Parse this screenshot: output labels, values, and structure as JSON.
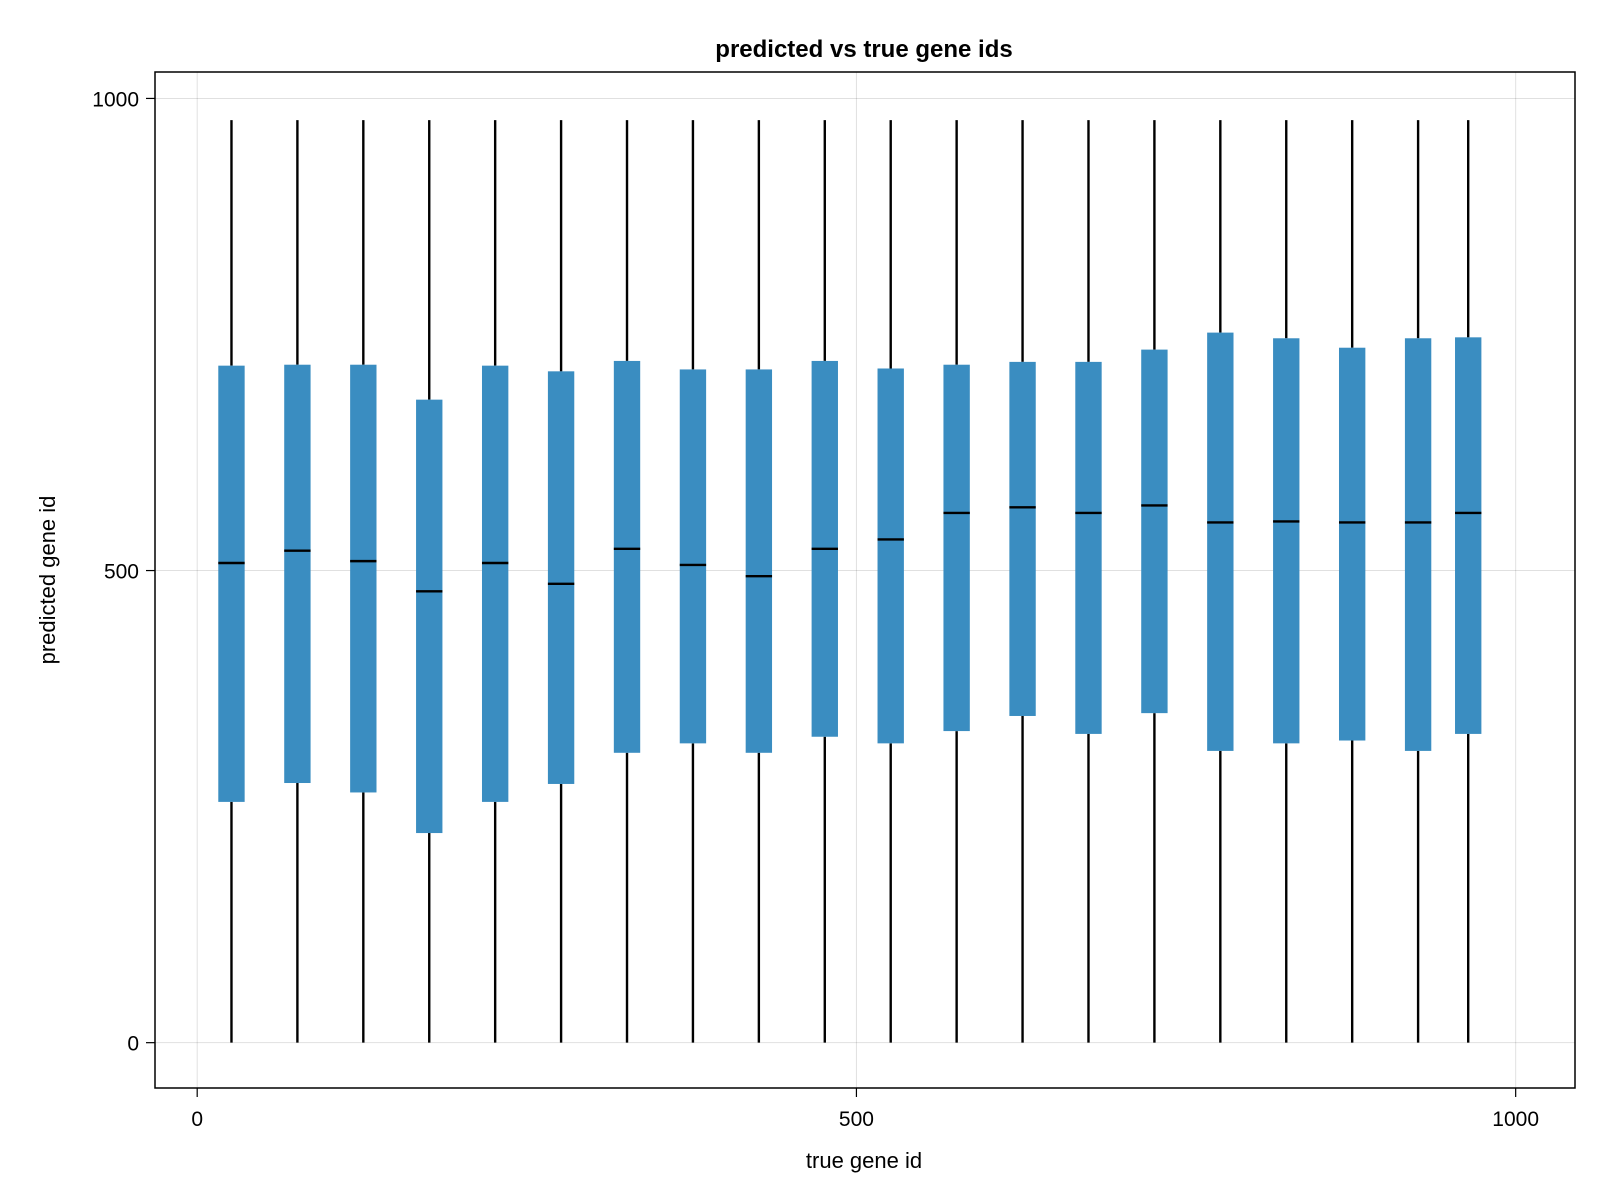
{
  "chart_data": {
    "type": "boxplot",
    "title": "predicted vs true gene ids",
    "xlabel": "true gene id",
    "ylabel": "predicted gene id",
    "xlim": [
      -32,
      1045
    ],
    "ylim": [
      -48,
      1028
    ],
    "xticks": [
      0,
      500,
      1000
    ],
    "yticks": [
      0,
      500,
      1000
    ],
    "grid": true,
    "box_color": "#3a8dc1",
    "whisker_color": "#000000",
    "median_color": "#000000",
    "box_width": 20,
    "series": [
      {
        "x": 26,
        "min": 0,
        "q1": 255,
        "median": 508,
        "q3": 717,
        "max": 977
      },
      {
        "x": 76,
        "min": 0,
        "q1": 275,
        "median": 521,
        "q3": 718,
        "max": 977
      },
      {
        "x": 126,
        "min": 0,
        "q1": 265,
        "median": 510,
        "q3": 718,
        "max": 977
      },
      {
        "x": 176,
        "min": 0,
        "q1": 222,
        "median": 478,
        "q3": 681,
        "max": 977
      },
      {
        "x": 226,
        "min": 0,
        "q1": 255,
        "median": 508,
        "q3": 717,
        "max": 977
      },
      {
        "x": 276,
        "min": 0,
        "q1": 274,
        "median": 486,
        "q3": 711,
        "max": 977
      },
      {
        "x": 326,
        "min": 0,
        "q1": 307,
        "median": 523,
        "q3": 722,
        "max": 977
      },
      {
        "x": 376,
        "min": 0,
        "q1": 317,
        "median": 506,
        "q3": 713,
        "max": 977
      },
      {
        "x": 426,
        "min": 0,
        "q1": 307,
        "median": 494,
        "q3": 713,
        "max": 977
      },
      {
        "x": 476,
        "min": 0,
        "q1": 324,
        "median": 523,
        "q3": 722,
        "max": 977
      },
      {
        "x": 526,
        "min": 0,
        "q1": 317,
        "median": 533,
        "q3": 714,
        "max": 977
      },
      {
        "x": 576,
        "min": 0,
        "q1": 330,
        "median": 561,
        "q3": 718,
        "max": 977
      },
      {
        "x": 626,
        "min": 0,
        "q1": 346,
        "median": 567,
        "q3": 721,
        "max": 977
      },
      {
        "x": 676,
        "min": 0,
        "q1": 327,
        "median": 561,
        "q3": 721,
        "max": 977
      },
      {
        "x": 726,
        "min": 0,
        "q1": 349,
        "median": 569,
        "q3": 734,
        "max": 977
      },
      {
        "x": 776,
        "min": 0,
        "q1": 309,
        "median": 551,
        "q3": 752,
        "max": 977
      },
      {
        "x": 826,
        "min": 0,
        "q1": 317,
        "median": 552,
        "q3": 746,
        "max": 977
      },
      {
        "x": 876,
        "min": 0,
        "q1": 320,
        "median": 551,
        "q3": 736,
        "max": 977
      },
      {
        "x": 926,
        "min": 0,
        "q1": 309,
        "median": 551,
        "q3": 746,
        "max": 977
      },
      {
        "x": 964,
        "min": 0,
        "q1": 327,
        "median": 561,
        "q3": 747,
        "max": 977
      }
    ]
  }
}
